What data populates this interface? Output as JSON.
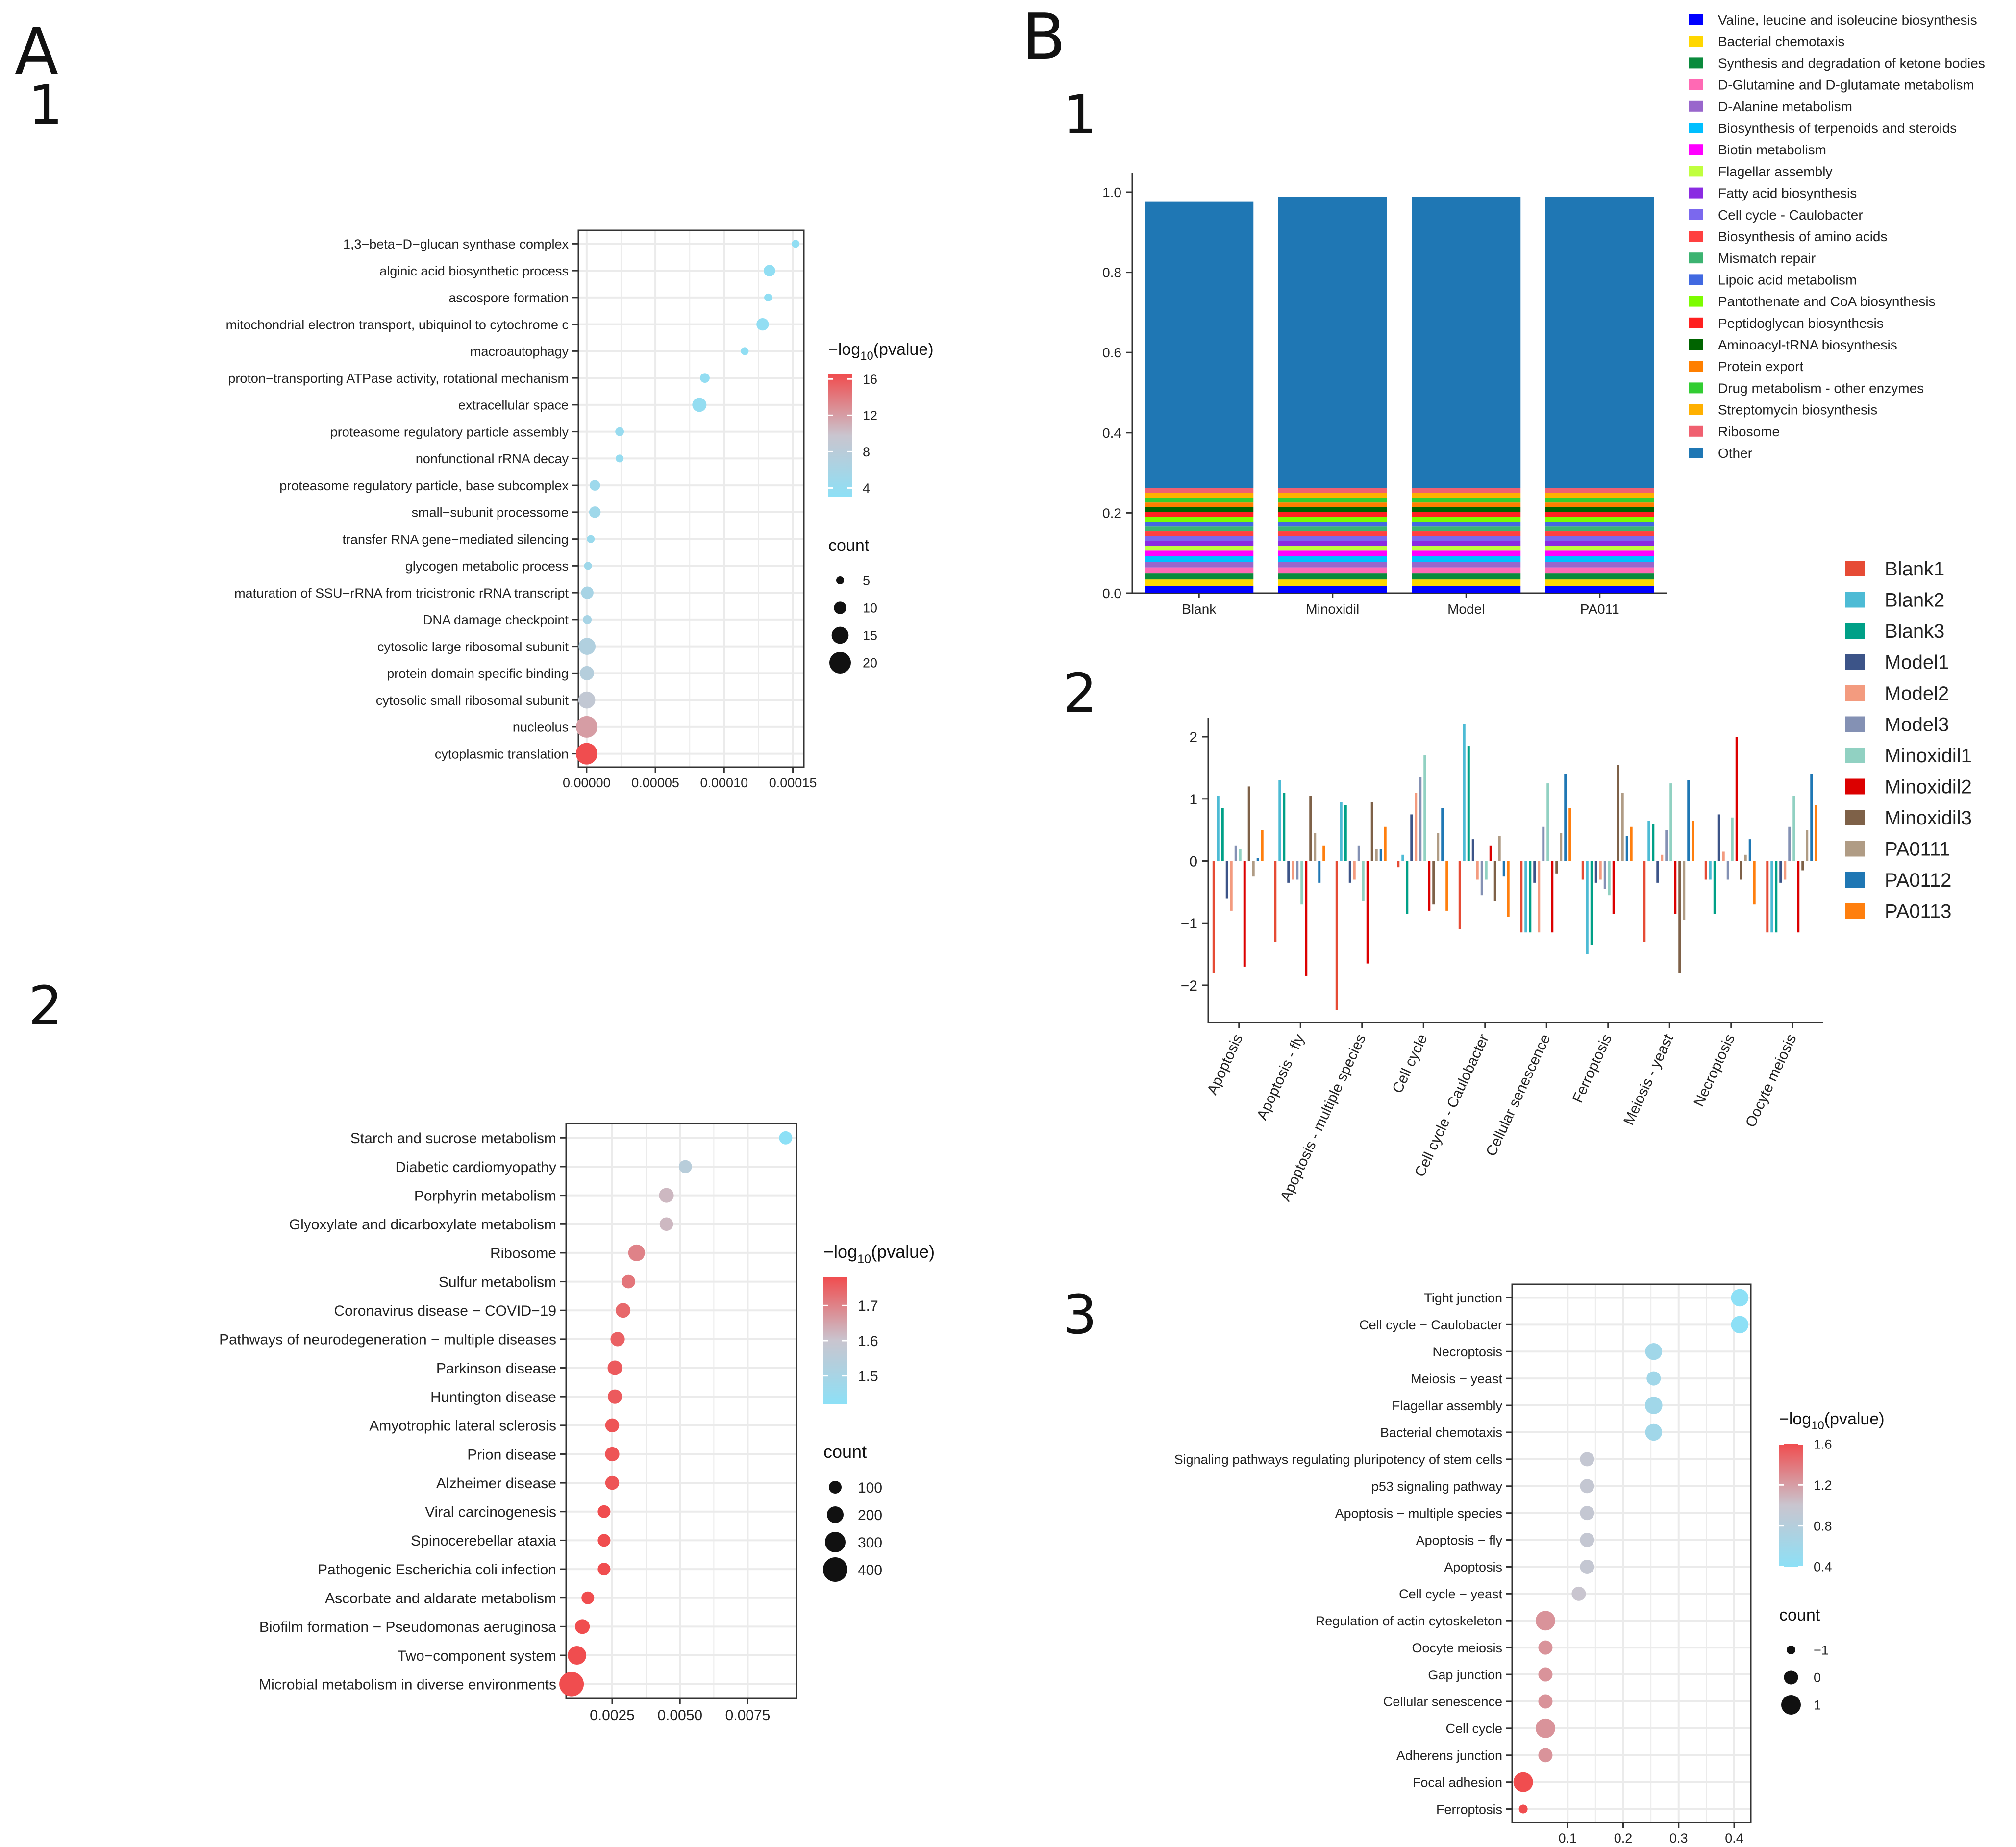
{
  "panel_labels": {
    "A": "A",
    "B": "B",
    "A1": "1",
    "A2": "2",
    "B1": "1",
    "B2": "2",
    "B3": "3"
  },
  "colors": {
    "dot_low": "#8de0f6",
    "dot_mid": "#c9c5cf",
    "dot_high": "#f04d4f",
    "grid": "#ebebeb",
    "frame": "#333333"
  },
  "chart_data": [
    {
      "id": "A1",
      "type": "scatter",
      "subtype": "dot-plot",
      "categories": [
        "1,3−beta−D−glucan synthase complex",
        "alginic acid biosynthetic process",
        "ascospore formation",
        "mitochondrial electron transport, ubiquinol to cytochrome c",
        "macroautophagy",
        "proton−transporting ATPase activity, rotational mechanism",
        "extracellular space",
        "proteasome regulatory particle assembly",
        "nonfunctional rRNA decay",
        "proteasome regulatory particle, base subcomplex",
        "small−subunit processome",
        "transfer RNA gene−mediated silencing",
        "glycogen metabolic process",
        "maturation of SSU−rRNA from tricistronic rRNA transcript",
        "DNA damage checkpoint",
        "cytosolic large ribosomal subunit",
        "protein domain specific binding",
        "cytosolic small ribosomal subunit",
        "nucleolus",
        "cytoplasmic translation"
      ],
      "x": [
        0.000152,
        0.000133,
        0.000132,
        0.000128,
        0.000115,
        8.6e-05,
        8.2e-05,
        2.4e-05,
        2.4e-05,
        6e-06,
        6e-06,
        3e-06,
        1e-06,
        5e-07,
        5e-07,
        3e-07,
        2e-07,
        1e-07,
        5e-08,
        1e-08
      ],
      "size": [
        3,
        9,
        4,
        10,
        4,
        7,
        12,
        6,
        4,
        8,
        9,
        3,
        3,
        10,
        6,
        15,
        12,
        15,
        20,
        22
      ],
      "color": [
        3.5,
        3.5,
        3.5,
        3.6,
        3.5,
        3.7,
        3.8,
        4.2,
        4.0,
        4.8,
        5.0,
        4.5,
        5.0,
        6.0,
        6.0,
        7.0,
        7.5,
        9.0,
        12.0,
        16.5
      ],
      "xlim": [
        -6e-06,
        0.000158
      ],
      "x_ticks": [
        0,
        5e-05,
        0.0001,
        0.00015
      ],
      "x_tick_labels": [
        "0.00000",
        "0.00005",
        "0.00010",
        "0.00015"
      ],
      "grid": true,
      "legend_color": {
        "title_pre": "−log",
        "title_sub": "10",
        "title_post": "(pvalue)",
        "ticks": [
          4,
          8,
          12,
          16
        ],
        "tick_labels": [
          "4",
          "8",
          "12",
          "16"
        ],
        "range": [
          3,
          16.5
        ]
      },
      "legend_size": {
        "title": "count",
        "values": [
          5,
          10,
          15,
          20
        ],
        "labels": [
          "5",
          "10",
          "15",
          "20"
        ]
      },
      "legend_placement": "right"
    },
    {
      "id": "A2",
      "type": "scatter",
      "subtype": "dot-plot",
      "categories": [
        "Starch and sucrose metabolism",
        "Diabetic cardiomyopathy",
        "Porphyrin metabolism",
        "Glyoxylate and dicarboxylate metabolism",
        "Ribosome",
        "Sulfur metabolism",
        "Coronavirus disease − COVID−19",
        "Pathways of neurodegeneration − multiple diseases",
        "Parkinson disease",
        "Huntington disease",
        "Amyotrophic lateral sclerosis",
        "Prion disease",
        "Alzheimer disease",
        "Viral carcinogenesis",
        "Spinocerebellar ataxia",
        "Pathogenic Escherichia coli infection",
        "Ascorbate and aldarate metabolism",
        "Biofilm formation − Pseudomonas aeruginosa",
        "Two−component system",
        "Microbial metabolism in diverse environments"
      ],
      "x": [
        0.0089,
        0.0052,
        0.0045,
        0.0045,
        0.0034,
        0.0031,
        0.0029,
        0.0027,
        0.0026,
        0.0026,
        0.0025,
        0.0025,
        0.0025,
        0.0022,
        0.0022,
        0.0022,
        0.0016,
        0.0014,
        0.0012,
        0.001
      ],
      "size": [
        110,
        110,
        150,
        120,
        200,
        120,
        150,
        140,
        150,
        140,
        130,
        140,
        130,
        80,
        80,
        80,
        100,
        150,
        250,
        400
      ],
      "color": [
        1.4,
        1.55,
        1.62,
        1.62,
        1.7,
        1.72,
        1.74,
        1.75,
        1.76,
        1.76,
        1.77,
        1.77,
        1.77,
        1.78,
        1.78,
        1.78,
        1.8,
        1.8,
        1.8,
        1.8
      ],
      "xlim": [
        0.0008,
        0.0093
      ],
      "x_ticks": [
        0.0025,
        0.005,
        0.0075
      ],
      "x_tick_labels": [
        "0.0025",
        "0.0050",
        "0.0075"
      ],
      "grid": true,
      "legend_color": {
        "title_pre": "−log",
        "title_sub": "10",
        "title_post": "(pvalue)",
        "ticks": [
          1.5,
          1.6,
          1.7
        ],
        "tick_labels": [
          "1.5",
          "1.6",
          "1.7"
        ],
        "range": [
          1.42,
          1.78
        ]
      },
      "legend_size": {
        "title": "count",
        "values": [
          100,
          200,
          300,
          400
        ],
        "labels": [
          "100",
          "200",
          "300",
          "400"
        ]
      },
      "legend_placement": "right"
    },
    {
      "id": "B1",
      "type": "bar",
      "subtype": "stacked",
      "categories": [
        "Blank",
        "Minoxidil",
        "Model",
        "PA011"
      ],
      "ylim": [
        0,
        1.0
      ],
      "y_ticks": [
        0,
        0.2,
        0.4,
        0.6,
        0.8,
        1.0
      ],
      "y_tick_labels": [
        "0.0",
        "0.2",
        "0.4",
        "0.6",
        "0.8",
        "1.0"
      ],
      "legend_placement": "top-right",
      "series": [
        {
          "name": "Valine, leucine and isoleucine biosynthesis",
          "color": "#0000ff",
          "values": [
            0.018,
            0.018,
            0.018,
            0.018
          ]
        },
        {
          "name": "Bacterial chemotaxis",
          "color": "#ffd700",
          "values": [
            0.016,
            0.016,
            0.016,
            0.016
          ]
        },
        {
          "name": "Synthesis and degradation of ketone bodies",
          "color": "#0a8a3c",
          "values": [
            0.016,
            0.016,
            0.016,
            0.016
          ]
        },
        {
          "name": "D-Glutamine and D-glutamate metabolism",
          "color": "#ff69b4",
          "values": [
            0.014,
            0.014,
            0.014,
            0.014
          ]
        },
        {
          "name": "D-Alanine metabolism",
          "color": "#9966cc",
          "values": [
            0.014,
            0.014,
            0.014,
            0.014
          ]
        },
        {
          "name": "Biosynthesis of terpenoids and steroids",
          "color": "#00bfff",
          "values": [
            0.014,
            0.014,
            0.014,
            0.014
          ]
        },
        {
          "name": "Biotin metabolism",
          "color": "#ff00ff",
          "values": [
            0.014,
            0.014,
            0.014,
            0.014
          ]
        },
        {
          "name": "Flagellar assembly",
          "color": "#c0ff3e",
          "values": [
            0.012,
            0.012,
            0.012,
            0.012
          ]
        },
        {
          "name": "Fatty acid biosynthesis",
          "color": "#8a2be2",
          "values": [
            0.012,
            0.012,
            0.012,
            0.012
          ]
        },
        {
          "name": "Cell cycle - Caulobacter",
          "color": "#7b68ee",
          "values": [
            0.012,
            0.012,
            0.012,
            0.012
          ]
        },
        {
          "name": "Biosynthesis of amino acids",
          "color": "#ff4040",
          "values": [
            0.012,
            0.012,
            0.012,
            0.012
          ]
        },
        {
          "name": "Mismatch repair",
          "color": "#3cb371",
          "values": [
            0.012,
            0.012,
            0.012,
            0.012
          ]
        },
        {
          "name": "Lipoic acid metabolism",
          "color": "#4169e1",
          "values": [
            0.012,
            0.012,
            0.012,
            0.012
          ]
        },
        {
          "name": "Pantothenate and CoA biosynthesis",
          "color": "#7cfc00",
          "values": [
            0.012,
            0.012,
            0.012,
            0.012
          ]
        },
        {
          "name": "Peptidoglycan biosynthesis",
          "color": "#ff2020",
          "values": [
            0.012,
            0.012,
            0.012,
            0.012
          ]
        },
        {
          "name": "Aminoacyl-tRNA biosynthesis",
          "color": "#006400",
          "values": [
            0.012,
            0.012,
            0.012,
            0.012
          ]
        },
        {
          "name": "Protein export",
          "color": "#ff7f00",
          "values": [
            0.012,
            0.012,
            0.012,
            0.012
          ]
        },
        {
          "name": "Drug metabolism - other enzymes",
          "color": "#32cd32",
          "values": [
            0.012,
            0.012,
            0.012,
            0.012
          ]
        },
        {
          "name": "Streptomycin biosynthesis",
          "color": "#ffb000",
          "values": [
            0.012,
            0.012,
            0.012,
            0.012
          ]
        },
        {
          "name": "Ribosome",
          "color": "#f06070",
          "values": [
            0.012,
            0.012,
            0.012,
            0.012
          ]
        },
        {
          "name": "Other",
          "color": "#1f77b4",
          "values": [
            0.714,
            0.726,
            0.726,
            0.726
          ]
        }
      ]
    },
    {
      "id": "B2",
      "type": "bar",
      "subtype": "grouped",
      "categories": [
        "Apoptosis",
        "Apoptosis - fly",
        "Apoptosis - multiple species",
        "Cell cycle",
        "Cell cycle - Caulobacter",
        "Cellular senescence",
        "Ferroptosis",
        "Meiosis - yeast",
        "Necroptosis",
        "Oocyte meiosis"
      ],
      "ylim": [
        -2.6,
        2.3
      ],
      "y_ticks": [
        -2,
        -1,
        0,
        1,
        2
      ],
      "y_tick_labels": [
        "−2",
        "−1",
        "0",
        "1",
        "2"
      ],
      "legend_placement": "right",
      "series": [
        {
          "name": "Blank1",
          "color": "#e64b35",
          "values": [
            -1.8,
            -1.3,
            -2.4,
            -0.1,
            -1.1,
            -1.15,
            -0.3,
            -1.3,
            -0.3,
            -1.15
          ]
        },
        {
          "name": "Blank2",
          "color": "#4dbbd5",
          "values": [
            1.05,
            1.3,
            0.95,
            0.1,
            2.2,
            -1.15,
            -1.5,
            0.65,
            -0.3,
            -1.15
          ]
        },
        {
          "name": "Blank3",
          "color": "#00a087",
          "values": [
            0.85,
            1.1,
            0.9,
            -0.85,
            1.85,
            -1.15,
            -1.35,
            0.6,
            -0.85,
            -1.15
          ]
        },
        {
          "name": "Model1",
          "color": "#3c5488",
          "values": [
            -0.6,
            -0.35,
            -0.35,
            0.75,
            0.35,
            -0.35,
            -0.35,
            -0.35,
            0.75,
            -0.35
          ]
        },
        {
          "name": "Model2",
          "color": "#f39b7f",
          "values": [
            -0.8,
            -0.3,
            -0.3,
            1.1,
            -0.3,
            -1.15,
            -0.3,
            0.1,
            0.15,
            -0.3
          ]
        },
        {
          "name": "Model3",
          "color": "#8491b4",
          "values": [
            0.25,
            -0.3,
            0.25,
            1.35,
            -0.55,
            0.55,
            -0.45,
            0.5,
            -0.3,
            0.55
          ]
        },
        {
          "name": "Minoxidil1",
          "color": "#91d1c2",
          "values": [
            0.2,
            -0.7,
            -0.65,
            1.7,
            -0.3,
            1.25,
            -0.55,
            1.25,
            0.7,
            1.05
          ]
        },
        {
          "name": "Minoxidil2",
          "color": "#dc0000",
          "values": [
            -1.7,
            -1.85,
            -1.65,
            -0.8,
            0.25,
            -1.15,
            -0.85,
            -0.85,
            2.0,
            -1.15
          ]
        },
        {
          "name": "Minoxidil3",
          "color": "#7e6148",
          "values": [
            1.2,
            1.05,
            0.95,
            -0.7,
            -0.65,
            -0.2,
            1.55,
            -1.8,
            -0.3,
            -0.15
          ]
        },
        {
          "name": "PA0111",
          "color": "#b09c85",
          "values": [
            -0.25,
            0.45,
            0.2,
            0.45,
            0.4,
            0.45,
            1.1,
            -0.95,
            0.1,
            0.5
          ]
        },
        {
          "name": "PA0112",
          "color": "#1f77b4",
          "values": [
            0.05,
            -0.35,
            0.2,
            0.85,
            -0.25,
            1.4,
            0.4,
            1.3,
            0.35,
            1.4
          ]
        },
        {
          "name": "PA0113",
          "color": "#ff7f0e",
          "values": [
            0.5,
            0.25,
            0.55,
            -0.8,
            -0.9,
            0.85,
            0.55,
            0.65,
            -0.7,
            0.9
          ]
        }
      ]
    },
    {
      "id": "B3",
      "type": "scatter",
      "subtype": "dot-plot",
      "categories": [
        "Tight junction",
        "Cell cycle − Caulobacter",
        "Necroptosis",
        "Meiosis − yeast",
        "Flagellar assembly",
        "Bacterial chemotaxis",
        "Signaling pathways regulating pluripotency of stem cells",
        "p53 signaling pathway",
        "Apoptosis − multiple species",
        "Apoptosis − fly",
        "Apoptosis",
        "Cell cycle − yeast",
        "Regulation of actin cytoskeleton",
        "Oocyte meiosis",
        "Gap junction",
        "Cellular senescence",
        "Cell cycle",
        "Adherens junction",
        "Focal adhesion",
        "Ferroptosis"
      ],
      "x": [
        0.41,
        0.41,
        0.255,
        0.255,
        0.255,
        0.255,
        0.135,
        0.135,
        0.135,
        0.135,
        0.135,
        0.12,
        0.06,
        0.06,
        0.06,
        0.06,
        0.06,
        0.06,
        0.02,
        0.02
      ],
      "size": [
        0.6,
        0.6,
        0.5,
        0.0,
        0.6,
        0.5,
        0.0,
        0.0,
        0.0,
        0.0,
        0.0,
        0.0,
        1.0,
        0.0,
        0.0,
        0.0,
        1.2,
        0.0,
        1.2,
        -1.0
      ],
      "color": [
        0.4,
        0.4,
        0.6,
        0.6,
        0.6,
        0.6,
        0.95,
        0.95,
        0.95,
        0.95,
        0.95,
        1.0,
        1.25,
        1.25,
        1.25,
        1.25,
        1.25,
        1.25,
        1.6,
        1.6
      ],
      "xlim": [
        0.0,
        0.43
      ],
      "x_ticks": [
        0.1,
        0.2,
        0.3,
        0.4
      ],
      "x_tick_labels": [
        "0.1",
        "0.2",
        "0.3",
        "0.4"
      ],
      "grid": true,
      "legend_color": {
        "title_pre": "−log",
        "title_sub": "10",
        "title_post": "(pvalue)",
        "ticks": [
          0.4,
          0.8,
          1.2,
          1.6
        ],
        "tick_labels": [
          "0.4",
          "0.8",
          "1.2",
          "1.6"
        ],
        "range": [
          0.4,
          1.6
        ]
      },
      "legend_size": {
        "title": "count",
        "values": [
          -1,
          0,
          1
        ],
        "labels": [
          "−1",
          "0",
          "1"
        ]
      },
      "legend_placement": "right"
    }
  ]
}
